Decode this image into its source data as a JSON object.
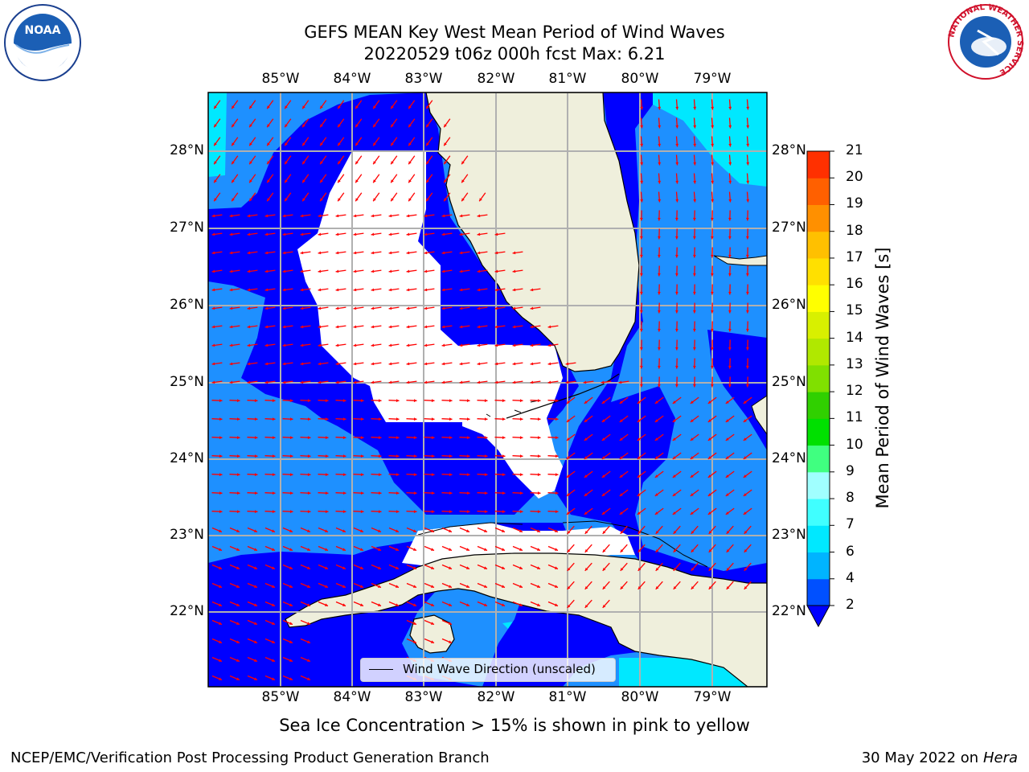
{
  "title": {
    "line1": "GEFS MEAN Key West Mean Period of Wind Waves",
    "line2": "20220529 t06z 000h fcst   Max: 6.21"
  },
  "lon_labels": [
    "85°W",
    "84°W",
    "83°W",
    "82°W",
    "81°W",
    "80°W",
    "79°W"
  ],
  "lat_labels": [
    "28°N",
    "27°N",
    "26°N",
    "25°N",
    "24°N",
    "23°N",
    "22°N"
  ],
  "colorbar": {
    "label": "Mean Period of Wind Waves [s]",
    "ticks": [
      "2",
      "4",
      "6",
      "7",
      "8",
      "9",
      "10",
      "11",
      "12",
      "13",
      "14",
      "15",
      "16",
      "17",
      "18",
      "19",
      "20",
      "21"
    ],
    "colors": [
      "#0050ff",
      "#00b4ff",
      "#00e8ff",
      "#40ffff",
      "#a0ffff",
      "#40ff80",
      "#00e000",
      "#30d000",
      "#80e000",
      "#b0e800",
      "#d8f000",
      "#ffff00",
      "#ffe000",
      "#ffc000",
      "#ff9000",
      "#ff6000",
      "#ff3000",
      "#ff0000"
    ]
  },
  "map": {
    "land_color": "#efefdc",
    "arrow_color": "#ff0000",
    "fill_colors": {
      "blue": "#0000ff",
      "mid": "#1e90ff",
      "cyan": "#00e8ff",
      "masked": "#ffffff"
    }
  },
  "legend": {
    "label": "Wind Wave Direction (unscaled)"
  },
  "caption": "Sea Ice Concentration > 15% is shown in pink to yellow",
  "footer": {
    "left": "NCEP/EMC/Verification Post Processing Product Generation Branch",
    "right_prefix": "30 May 2022 on",
    "right_host": "Hera"
  },
  "logos": {
    "noaa": "NOAA",
    "nws_text": "NATIONAL WEATHER SERVICE"
  }
}
